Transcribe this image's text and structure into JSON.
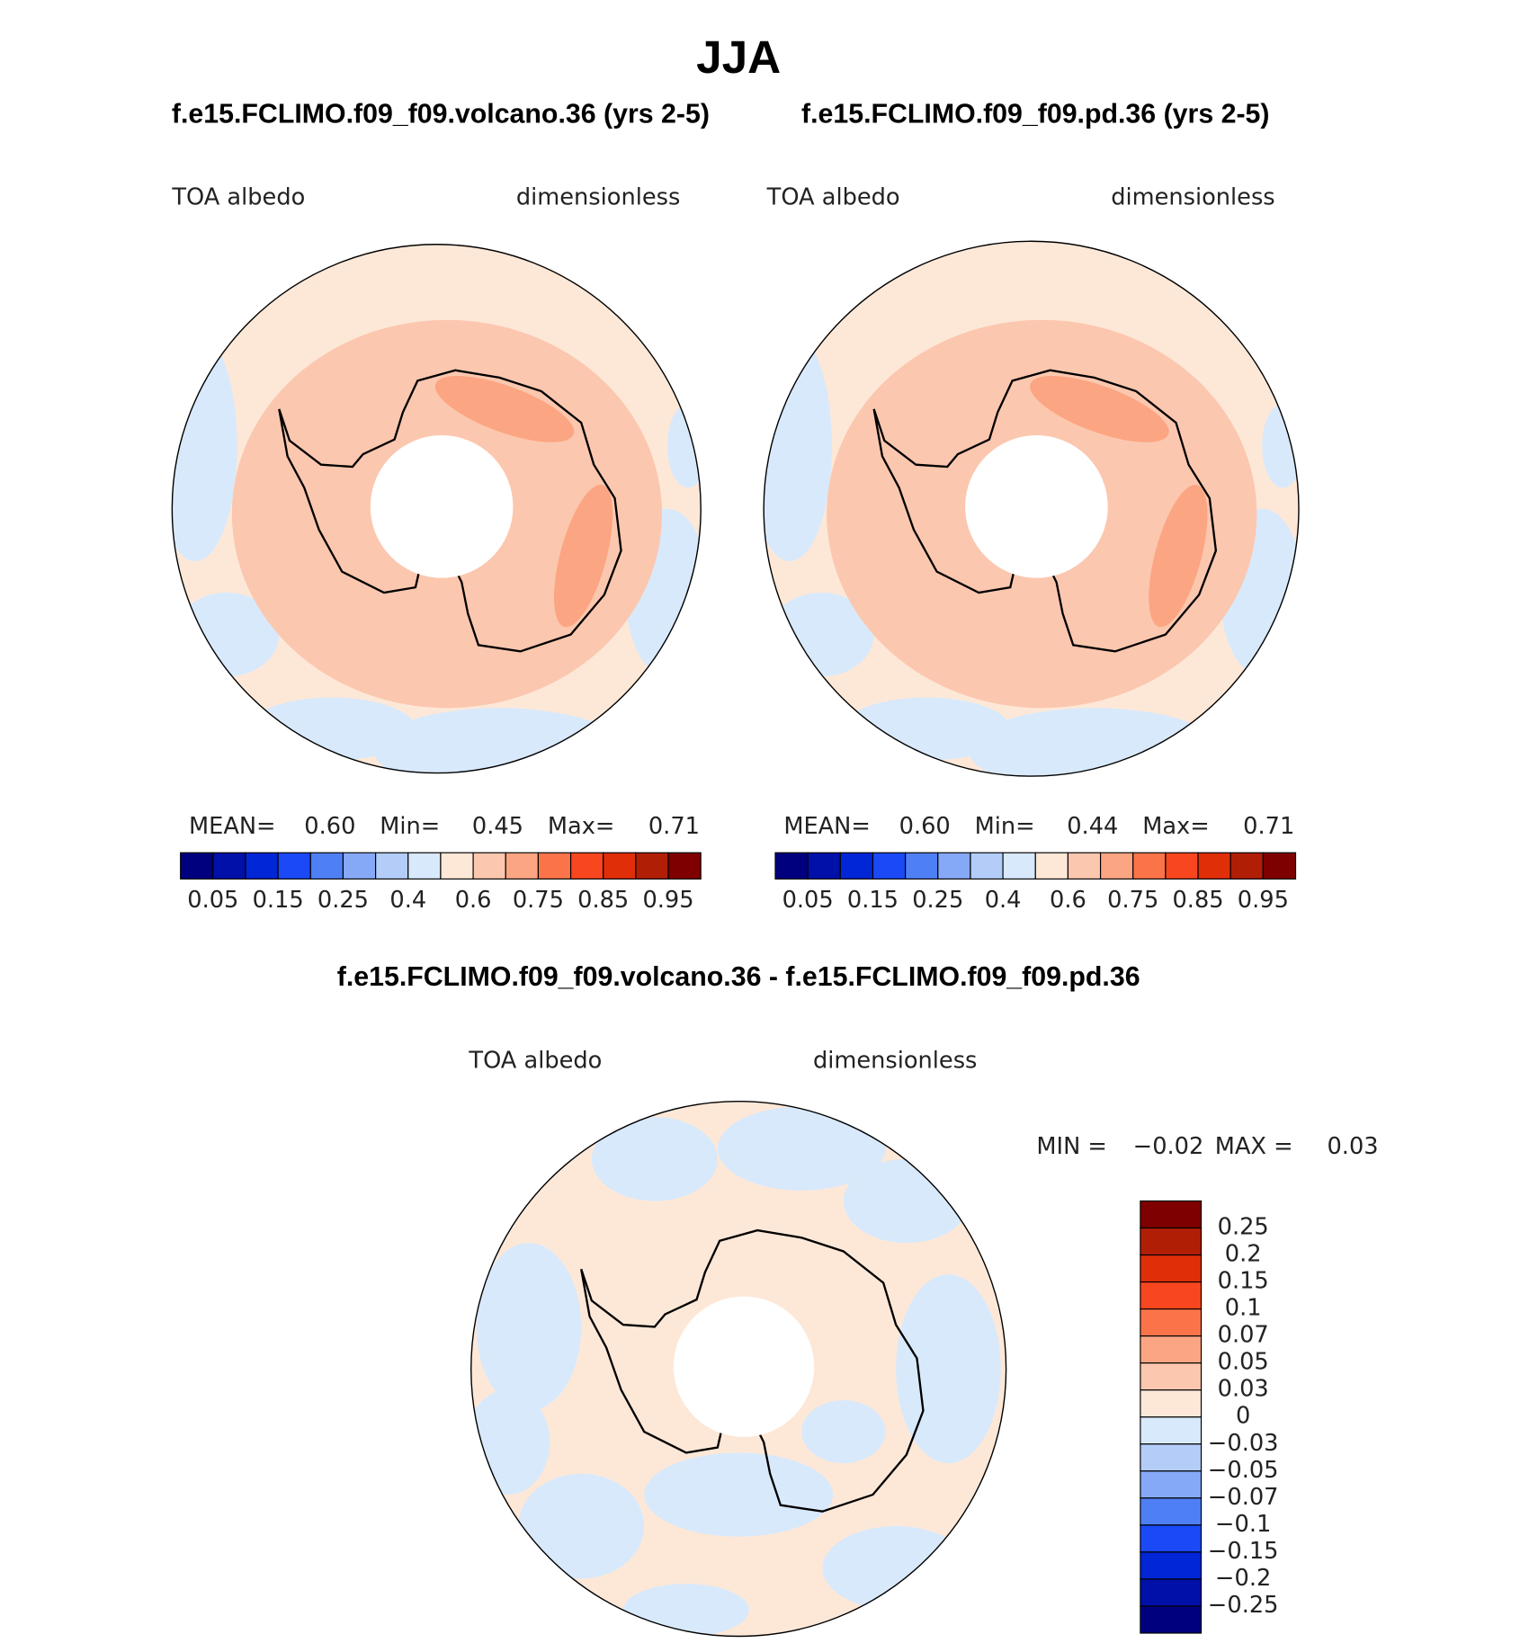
{
  "title": "JJA",
  "panels": [
    {
      "case": "f.e15.FCLIMO.f09_f09.volcano.36 (yrs 2-5)",
      "variable": "TOA albedo",
      "units": "dimensionless",
      "stats": [
        {
          "label": "MEAN=",
          "value": "0.60"
        },
        {
          "label": "Min=",
          "value": "0.45"
        },
        {
          "label": "Max=",
          "value": "0.71"
        }
      ],
      "colorbar": {
        "colors": [
          "#00007f",
          "#0010a8",
          "#0026d6",
          "#1a49f5",
          "#4f7ff5",
          "#86a9f7",
          "#b3cdf8",
          "#d8e9fb",
          "#fde8d8",
          "#fcc7af",
          "#fca582",
          "#fb7449",
          "#f8461e",
          "#e02e08",
          "#b11e06",
          "#7f0000"
        ],
        "labels": [
          "0.05",
          "0.15",
          "0.25",
          "0.4",
          "0.6",
          "0.75",
          "0.85",
          "0.95"
        ]
      }
    },
    {
      "case": "f.e15.FCLIMO.f09_f09.pd.36 (yrs 2-5)",
      "variable": "TOA albedo",
      "units": "dimensionless",
      "stats": [
        {
          "label": "MEAN=",
          "value": "0.60"
        },
        {
          "label": "Min=",
          "value": "0.44"
        },
        {
          "label": "Max=",
          "value": "0.71"
        }
      ],
      "colorbar": {
        "colors": [
          "#00007f",
          "#0010a8",
          "#0026d6",
          "#1a49f5",
          "#4f7ff5",
          "#86a9f7",
          "#b3cdf8",
          "#d8e9fb",
          "#fde8d8",
          "#fcc7af",
          "#fca582",
          "#fb7449",
          "#f8461e",
          "#e02e08",
          "#b11e06",
          "#7f0000"
        ],
        "labels": [
          "0.05",
          "0.15",
          "0.25",
          "0.4",
          "0.6",
          "0.75",
          "0.85",
          "0.95"
        ]
      }
    }
  ],
  "difference": {
    "case": "f.e15.FCLIMO.f09_f09.volcano.36 - f.e15.FCLIMO.f09_f09.pd.36",
    "variable": "TOA albedo",
    "units": "dimensionless",
    "stats": [
      {
        "label": "MIN =",
        "value": "−0.02"
      },
      {
        "label": "MAX =",
        "value": "0.03"
      }
    ],
    "colorbar": {
      "colors": [
        "#7f0000",
        "#b11e06",
        "#e02e08",
        "#f8461e",
        "#fb7449",
        "#fca582",
        "#fcc7af",
        "#fde8d8",
        "#d8e9fb",
        "#b3cdf8",
        "#86a9f7",
        "#4f7ff5",
        "#1a49f5",
        "#0026d6",
        "#0010a8",
        "#00007f"
      ],
      "labels": [
        "0.25",
        "0.2",
        "0.15",
        "0.1",
        "0.07",
        "0.05",
        "0.03",
        "0",
        "−0.03",
        "−0.05",
        "−0.07",
        "−0.1",
        "−0.15",
        "−0.2",
        "−0.25"
      ]
    }
  }
}
